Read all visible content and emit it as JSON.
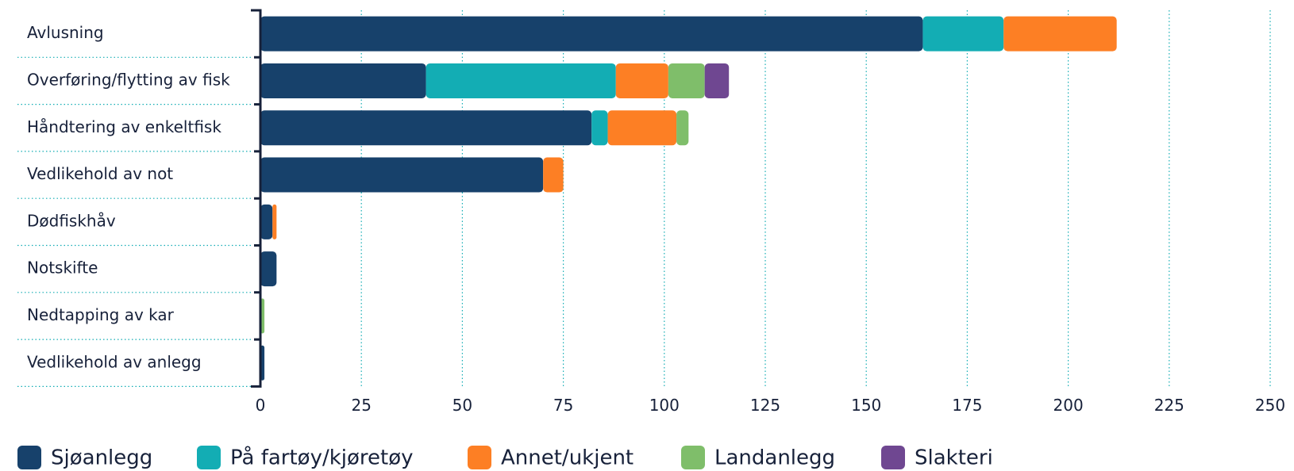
{
  "chart_data": {
    "type": "stacked_bar_horizontal",
    "categories": [
      "Avlusning",
      "Overføring/flytting av fisk",
      "Håndtering av enkeltfisk",
      "Vedlikehold av not",
      "Dødfiskhåv",
      "Notskifte",
      "Nedtapping av kar",
      "Vedlikehold av anlegg"
    ],
    "series": [
      {
        "name": "Sjøanlegg",
        "color": "#17416b",
        "values": [
          164,
          41,
          82,
          70,
          3,
          4,
          0,
          1
        ]
      },
      {
        "name": "På fartøy/kjøretøy",
        "color": "#13adb4",
        "values": [
          20,
          47,
          4,
          0,
          0,
          0,
          0,
          0
        ]
      },
      {
        "name": "Annet/ukjent",
        "color": "#fd7f24",
        "values": [
          28,
          13,
          17,
          5,
          1,
          0,
          0,
          0
        ]
      },
      {
        "name": "Landanlegg",
        "color": "#7fbe6a",
        "values": [
          0,
          9,
          3,
          0,
          0,
          0,
          1,
          0
        ]
      },
      {
        "name": "Slakteri",
        "color": "#6f4791",
        "values": [
          0,
          6,
          0,
          0,
          0,
          0,
          0,
          0
        ]
      }
    ],
    "xlim": [
      0,
      250
    ],
    "xticks": [
      0,
      25,
      50,
      75,
      100,
      125,
      150,
      175,
      200,
      225,
      250
    ],
    "grid": true,
    "legend": "bottom"
  }
}
